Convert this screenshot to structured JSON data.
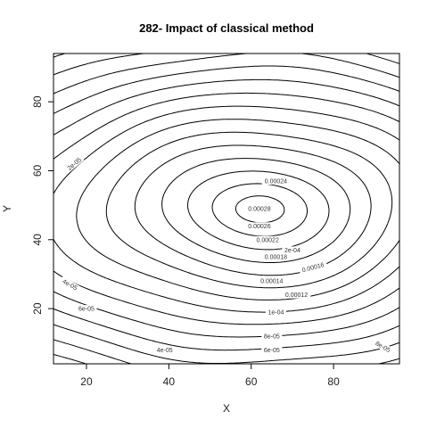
{
  "chart_data": {
    "type": "contour",
    "title": "282- Impact of classical method",
    "xlabel": "X",
    "ylabel": "Y",
    "xlim": [
      12,
      96
    ],
    "ylim": [
      4,
      94
    ],
    "xticks": [
      20,
      40,
      60,
      80
    ],
    "yticks": [
      20,
      40,
      60,
      80
    ],
    "grid": false,
    "legend": "none",
    "peak": [
      62,
      49
    ],
    "contour_labels": [
      {
        "text": "2e-05",
        "x": 17,
        "y": 62,
        "rot": -40
      },
      {
        "text": "4e-05",
        "x": 16,
        "y": 27,
        "rot": 30
      },
      {
        "text": "6e-05",
        "x": 20,
        "y": 20,
        "rot": 0
      },
      {
        "text": "4e-05",
        "x": 39,
        "y": 8,
        "rot": 0
      },
      {
        "text": "8e-05",
        "x": 92,
        "y": 9,
        "rot": 30
      },
      {
        "text": "0.00028",
        "x": 62,
        "y": 49,
        "rot": 0
      },
      {
        "text": "0.00026",
        "x": 62,
        "y": 44,
        "rot": 0
      },
      {
        "text": "0.00024",
        "x": 66,
        "y": 57,
        "rot": 0
      },
      {
        "text": "0.00022",
        "x": 64,
        "y": 40,
        "rot": 0
      },
      {
        "text": "2e-04",
        "x": 70,
        "y": 37,
        "rot": 0
      },
      {
        "text": "0.00018",
        "x": 66,
        "y": 35,
        "rot": 0
      },
      {
        "text": "0.00016",
        "x": 75,
        "y": 32,
        "rot": -15
      },
      {
        "text": "0.00014",
        "x": 65,
        "y": 28,
        "rot": 0
      },
      {
        "text": "0.00012",
        "x": 71,
        "y": 24,
        "rot": 0
      },
      {
        "text": "1e-04",
        "x": 66,
        "y": 19,
        "rot": 0
      },
      {
        "text": "8e-05",
        "x": 65,
        "y": 12,
        "rot": 0
      },
      {
        "text": "6e-05",
        "x": 65,
        "y": 8,
        "rot": 0
      }
    ]
  }
}
